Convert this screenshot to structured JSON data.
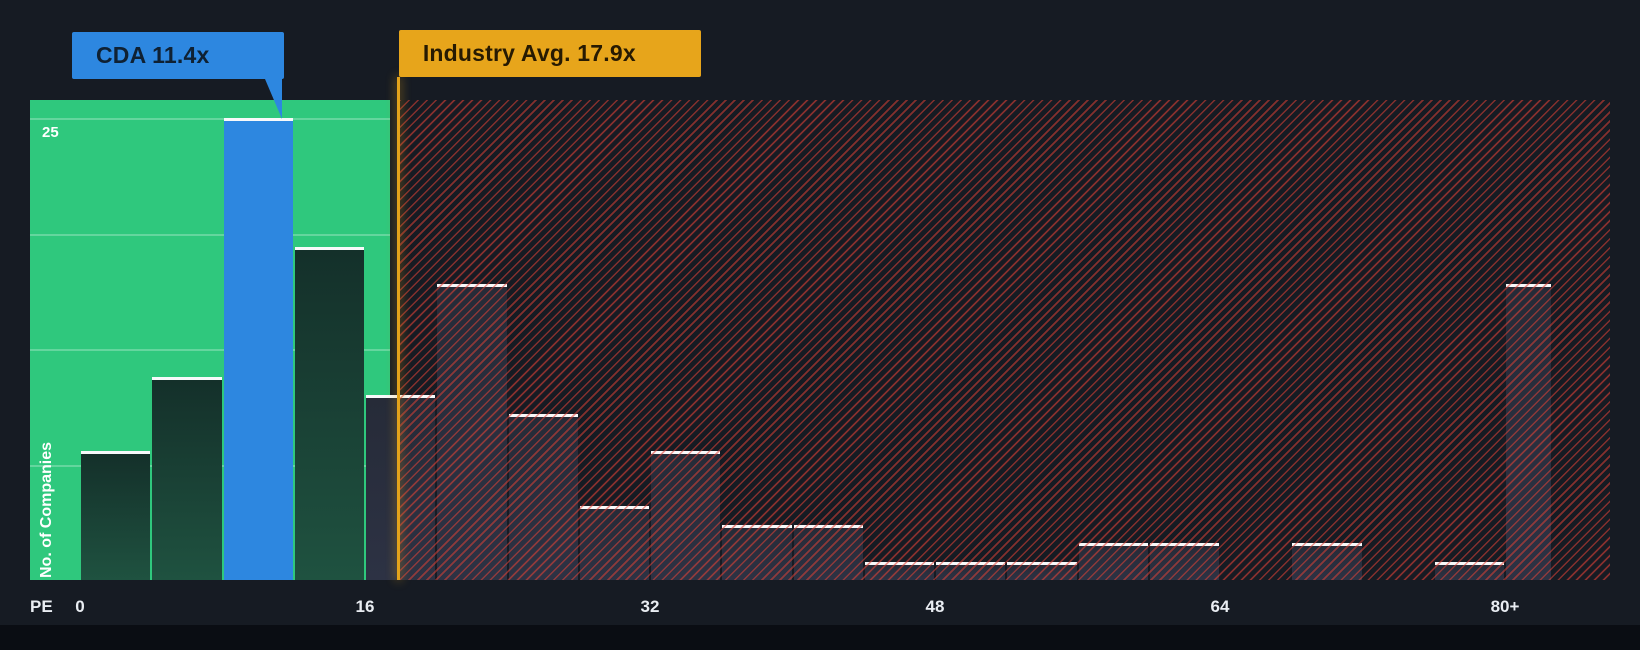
{
  "axes": {
    "y_label": "No. of Companies",
    "y_tick": "25",
    "x_prefix": "PE",
    "x_ticks": [
      "0",
      "16",
      "32",
      "48",
      "64",
      "80+"
    ]
  },
  "colors": {
    "background": "#161b23",
    "undervalued_zone_green": "#2fc87d",
    "overvalued_hatch_red": "#e0423a",
    "company_accent_blue": "#2d87e0",
    "industry_accent_yellow": "#e7a51b",
    "bar_cap_white": "#ffffff"
  },
  "chart_data": {
    "type": "bar",
    "subtype": "histogram",
    "title": "",
    "xlabel": "PE",
    "ylabel": "No. of Companies",
    "ylim": [
      0,
      26
    ],
    "x_bin_width": 4,
    "grid": "horizontal-in-green-zone-only",
    "y_axis": {
      "gridlines": [
        6.25,
        12.5,
        18.75,
        25
      ],
      "labeled_gridline": 25
    },
    "markers": {
      "company": {
        "name": "CDA",
        "value": 11.4,
        "display": "CDA 11.4x"
      },
      "industry": {
        "name": "Industry Avg.",
        "value": 17.9,
        "display": "Industry Avg. 17.9x"
      }
    },
    "zones": {
      "green": "PE below industry average (solid green background)",
      "red": "PE above industry average (red diagonal hatch background)"
    },
    "bins": [
      {
        "range": "0-4",
        "start": 0,
        "end": 4,
        "count": 7
      },
      {
        "range": "4-8",
        "start": 4,
        "end": 8,
        "count": 11
      },
      {
        "range": "8-12",
        "start": 8,
        "end": 12,
        "count": 25,
        "highlight": "company"
      },
      {
        "range": "12-16",
        "start": 12,
        "end": 16,
        "count": 18
      },
      {
        "range": "16-20",
        "start": 16,
        "end": 20,
        "count": 10
      },
      {
        "range": "20-24",
        "start": 20,
        "end": 24,
        "count": 16
      },
      {
        "range": "24-28",
        "start": 24,
        "end": 28,
        "count": 9
      },
      {
        "range": "28-32",
        "start": 28,
        "end": 32,
        "count": 4
      },
      {
        "range": "32-36",
        "start": 32,
        "end": 36,
        "count": 7
      },
      {
        "range": "36-40",
        "start": 36,
        "end": 40,
        "count": 3
      },
      {
        "range": "40-44",
        "start": 40,
        "end": 44,
        "count": 3
      },
      {
        "range": "44-48",
        "start": 44,
        "end": 48,
        "count": 1
      },
      {
        "range": "48-52",
        "start": 48,
        "end": 52,
        "count": 1
      },
      {
        "range": "52-56",
        "start": 52,
        "end": 56,
        "count": 1
      },
      {
        "range": "56-60",
        "start": 56,
        "end": 60,
        "count": 2
      },
      {
        "range": "60-64",
        "start": 60,
        "end": 64,
        "count": 2
      },
      {
        "range": "64-68",
        "start": 64,
        "end": 68,
        "count": 0
      },
      {
        "range": "68-72",
        "start": 68,
        "end": 72,
        "count": 2
      },
      {
        "range": "72-76",
        "start": 72,
        "end": 76,
        "count": 0
      },
      {
        "range": "76-80",
        "start": 76,
        "end": 80,
        "count": 1
      },
      {
        "range": "80+",
        "start": 80,
        "end": null,
        "count": 16,
        "open_ended": true
      }
    ]
  }
}
